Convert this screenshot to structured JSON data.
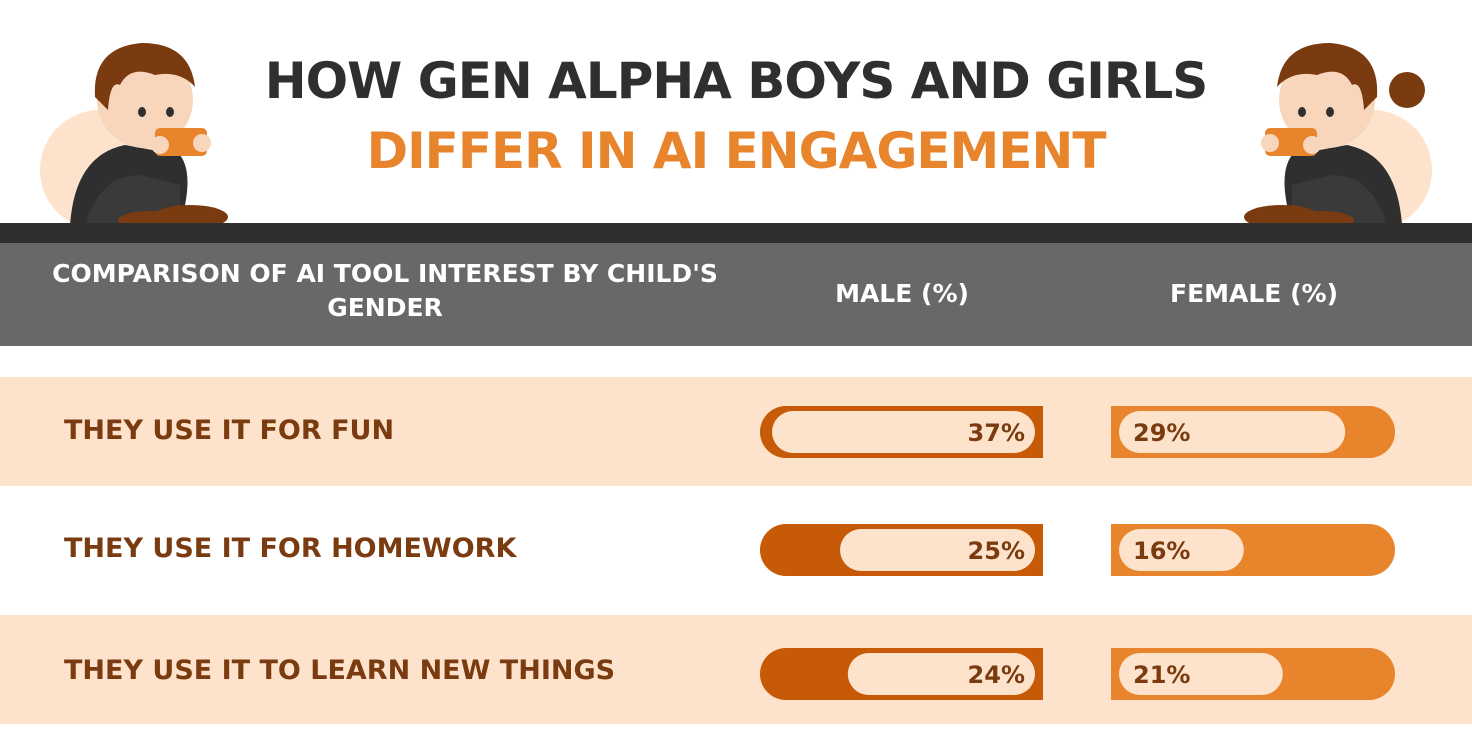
{
  "title": {
    "line1": "HOW GEN ALPHA BOYS AND GIRLS",
    "line2": "DIFFER IN AI ENGAGEMENT"
  },
  "colors": {
    "title_dark": "#2f2f2f",
    "title_accent": "#e8842c",
    "header_bg": "#686868",
    "row_shade": "#fde3cb",
    "male_bar": "#c65a06",
    "female_bar": "#e8842c",
    "pill": "#fde3cb",
    "label_text": "#7a3b10"
  },
  "icons": [
    "boy-with-phone-illustration",
    "girl-with-phone-illustration"
  ],
  "chart_data": {
    "type": "table",
    "columns": [
      "COMPARISON OF AI TOOL INTEREST BY CHILD'S GENDER",
      "MALE (%)",
      "FEMALE (%)"
    ],
    "rows": [
      {
        "label": "THEY USE IT FOR FUN",
        "male": 37,
        "female": 29,
        "male_text": "37%",
        "female_text": "29%"
      },
      {
        "label": "THEY USE IT FOR HOMEWORK",
        "male": 25,
        "female": 16,
        "male_text": "25%",
        "female_text": "16%"
      },
      {
        "label": "THEY USE IT TO LEARN NEW THINGS",
        "male": 24,
        "female": 21,
        "male_text": "24%",
        "female_text": "21%"
      }
    ]
  }
}
